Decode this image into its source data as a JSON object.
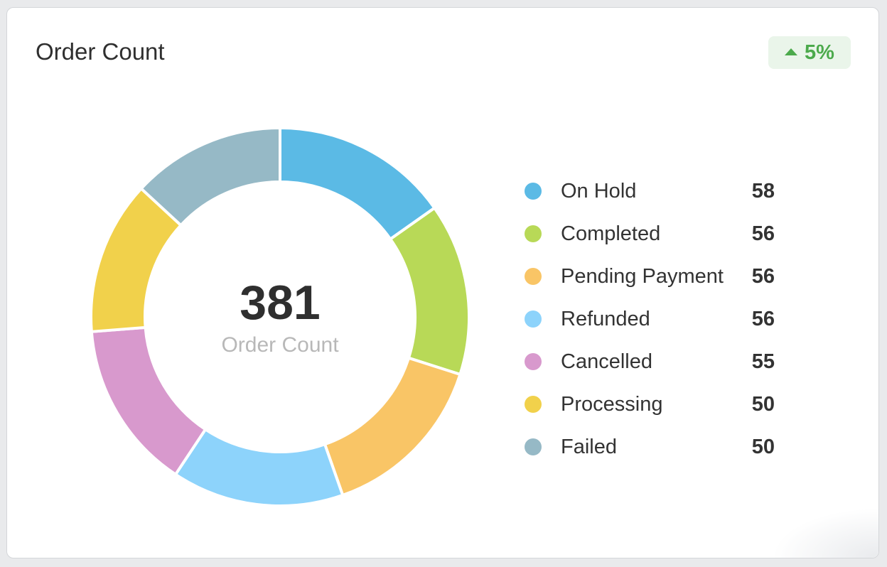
{
  "card": {
    "title": "Order Count",
    "trend": {
      "direction": "up",
      "value": "5%",
      "color": "#4caa4c"
    }
  },
  "center": {
    "total": "381",
    "caption": "Order Count"
  },
  "chart_data": {
    "type": "pie",
    "style": "donut",
    "legend_position": "right",
    "categories": [
      "On Hold",
      "Completed",
      "Pending Payment",
      "Refunded",
      "Cancelled",
      "Processing",
      "Failed"
    ],
    "values": [
      58,
      56,
      56,
      56,
      55,
      50,
      50
    ],
    "colors": [
      "#5bbae5",
      "#b8d957",
      "#f9c566",
      "#8dd3fb",
      "#d899cd",
      "#f1d14b",
      "#96b9c6"
    ],
    "legend": [
      {
        "label": "On Hold",
        "value": "58",
        "color": "#5bbae5"
      },
      {
        "label": "Completed",
        "value": "56",
        "color": "#b8d957"
      },
      {
        "label": "Pending Payment",
        "value": "56",
        "color": "#f9c566"
      },
      {
        "label": "Refunded",
        "value": "56",
        "color": "#8dd3fb"
      },
      {
        "label": "Cancelled",
        "value": "55",
        "color": "#d899cd"
      },
      {
        "label": "Processing",
        "value": "50",
        "color": "#f1d14b"
      },
      {
        "label": "Failed",
        "value": "50",
        "color": "#96b9c6"
      }
    ]
  }
}
